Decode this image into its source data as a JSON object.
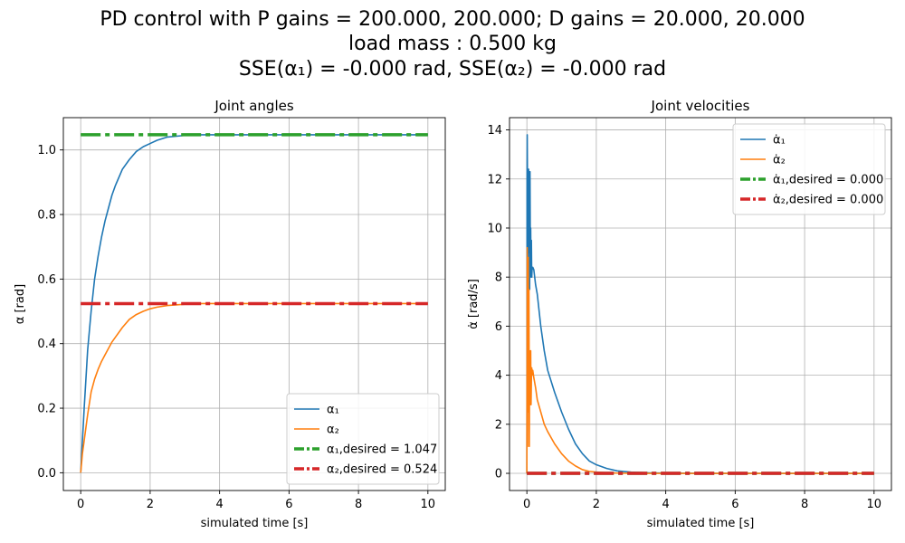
{
  "figure": {
    "title_line1": "PD control with P gains = 200.000, 200.000; D gains = 20.000, 20.000",
    "title_line2": "load mass : 0.500 kg",
    "title_line3": "SSE(α₁) = -0.000 rad, SSE(α₂) = -0.000 rad"
  },
  "colors": {
    "blue": "#1f77b4",
    "orange": "#ff7f0e",
    "green": "#2ca02c",
    "red": "#d62728"
  },
  "chart_data": [
    {
      "type": "line",
      "title": "Joint angles",
      "xlabel": "simulated time [s]",
      "ylabel": "α [rad]",
      "xlim": [
        -0.5,
        10.5
      ],
      "ylim": [
        -0.055,
        1.1
      ],
      "xticks": [
        0,
        2,
        4,
        6,
        8,
        10
      ],
      "yticks": [
        0.0,
        0.2,
        0.4,
        0.6,
        0.8,
        1.0
      ],
      "ytick_decimals": 1,
      "grid": true,
      "legend_position": "lower-right",
      "series": [
        {
          "name": "α₁",
          "color": "#1f77b4",
          "style": "solid",
          "x": [
            0,
            0.05,
            0.1,
            0.2,
            0.3,
            0.4,
            0.5,
            0.6,
            0.7,
            0.8,
            0.9,
            1.0,
            1.2,
            1.4,
            1.6,
            1.8,
            2.0,
            2.2,
            2.5,
            3.0,
            3.5,
            4.0,
            5.0,
            6.0,
            8.0,
            10.0
          ],
          "y": [
            0.0,
            0.1,
            0.2,
            0.38,
            0.5,
            0.6,
            0.67,
            0.73,
            0.78,
            0.82,
            0.86,
            0.89,
            0.94,
            0.97,
            0.995,
            1.01,
            1.02,
            1.03,
            1.04,
            1.045,
            1.047,
            1.047,
            1.047,
            1.047,
            1.047,
            1.047
          ]
        },
        {
          "name": "α₂",
          "color": "#ff7f0e",
          "style": "solid",
          "x": [
            0,
            0.05,
            0.1,
            0.2,
            0.3,
            0.4,
            0.5,
            0.6,
            0.7,
            0.8,
            0.9,
            1.0,
            1.2,
            1.4,
            1.6,
            1.8,
            2.0,
            2.2,
            2.5,
            3.0,
            3.5,
            4.0,
            5.0,
            6.0,
            8.0,
            10.0
          ],
          "y": [
            0.0,
            0.06,
            0.1,
            0.18,
            0.25,
            0.29,
            0.32,
            0.345,
            0.365,
            0.385,
            0.405,
            0.42,
            0.45,
            0.475,
            0.49,
            0.5,
            0.508,
            0.513,
            0.518,
            0.522,
            0.524,
            0.524,
            0.524,
            0.524,
            0.524,
            0.524
          ]
        },
        {
          "name": "α₁,desired = 1.047",
          "color": "#2ca02c",
          "style": "dashdot",
          "x": [
            0,
            10
          ],
          "y": [
            1.047,
            1.047
          ]
        },
        {
          "name": "α₂,desired = 0.524",
          "color": "#d62728",
          "style": "dashdot",
          "x": [
            0,
            10
          ],
          "y": [
            0.524,
            0.524
          ]
        }
      ]
    },
    {
      "type": "line",
      "title": "Joint velocities",
      "xlabel": "simulated time [s]",
      "ylabel": "α̇ [rad/s]",
      "xlim": [
        -0.5,
        10.5
      ],
      "ylim": [
        -0.7,
        14.5
      ],
      "xticks": [
        0,
        2,
        4,
        6,
        8,
        10
      ],
      "yticks": [
        0,
        2,
        4,
        6,
        8,
        10,
        12,
        14
      ],
      "ytick_decimals": 0,
      "grid": true,
      "legend_position": "top-right",
      "series": [
        {
          "name": "α̇₁",
          "color": "#1f77b4",
          "style": "solid",
          "x": [
            0,
            0.005,
            0.01,
            0.02,
            0.03,
            0.04,
            0.05,
            0.06,
            0.07,
            0.08,
            0.09,
            0.1,
            0.11,
            0.12,
            0.13,
            0.14,
            0.15,
            0.17,
            0.2,
            0.25,
            0.3,
            0.4,
            0.5,
            0.6,
            0.8,
            1.0,
            1.2,
            1.4,
            1.6,
            1.8,
            2.0,
            2.3,
            2.6,
            3.0,
            3.5,
            4.0,
            5.0,
            6.0,
            8.0,
            10.0
          ],
          "y": [
            0,
            12.0,
            13.8,
            11.0,
            8.5,
            10.5,
            12.4,
            9.0,
            11.0,
            7.5,
            12.3,
            9.0,
            10.0,
            8.0,
            9.5,
            8.0,
            8.3,
            8.4,
            8.3,
            7.7,
            7.3,
            6.0,
            5.0,
            4.2,
            3.3,
            2.5,
            1.8,
            1.2,
            0.8,
            0.5,
            0.35,
            0.2,
            0.1,
            0.05,
            0.02,
            0.01,
            0.0,
            0.0,
            0.0,
            0.0
          ]
        },
        {
          "name": "α̇₂",
          "color": "#ff7f0e",
          "style": "solid",
          "x": [
            0,
            0.01,
            0.02,
            0.03,
            0.04,
            0.05,
            0.06,
            0.07,
            0.08,
            0.09,
            0.1,
            0.11,
            0.12,
            0.13,
            0.14,
            0.15,
            0.17,
            0.2,
            0.25,
            0.3,
            0.4,
            0.5,
            0.6,
            0.8,
            1.0,
            1.2,
            1.4,
            1.6,
            1.8,
            2.0,
            2.3,
            2.6,
            3.0,
            3.5,
            4.0,
            5.0,
            6.0,
            8.0,
            10.0
          ],
          "y": [
            0,
            9.2,
            1.1,
            6.0,
            8.8,
            2.5,
            7.5,
            1.1,
            5.0,
            2.8,
            4.5,
            5.0,
            2.8,
            3.8,
            4.3,
            4.0,
            4.2,
            3.9,
            3.5,
            3.0,
            2.5,
            2.0,
            1.7,
            1.2,
            0.8,
            0.5,
            0.3,
            0.15,
            0.08,
            0.05,
            0.02,
            0.01,
            0.0,
            0.0,
            0.0,
            0.0,
            0.0,
            0.0,
            0.0
          ]
        },
        {
          "name": "α̇₁,desired = 0.000",
          "color": "#2ca02c",
          "style": "dashdot",
          "x": [
            0,
            10
          ],
          "y": [
            0,
            0
          ]
        },
        {
          "name": "α̇₂,desired = 0.000",
          "color": "#d62728",
          "style": "dashdot",
          "x": [
            0,
            10
          ],
          "y": [
            0,
            0
          ]
        }
      ]
    }
  ]
}
